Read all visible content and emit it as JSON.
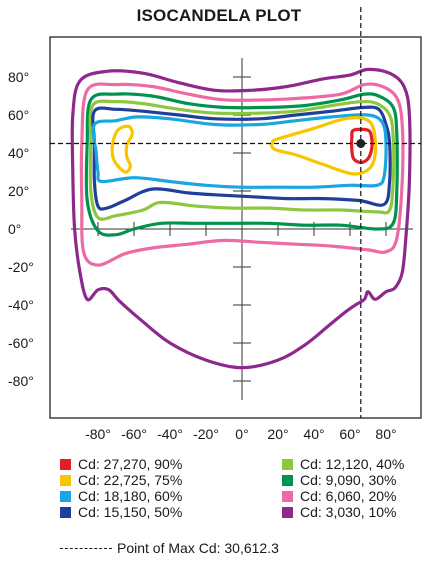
{
  "chart_data": {
    "type": "polar-contour",
    "title": "ISOCANDELA PLOT",
    "xlabel": "",
    "ylabel": "",
    "x_ticks": [
      "-80°",
      "-60°",
      "-40°",
      "-20°",
      "0°",
      "20°",
      "40°",
      "60°",
      "80°"
    ],
    "y_ticks": [
      "80°",
      "60°",
      "40°",
      "20°",
      "0°",
      "-20°",
      "-40°",
      "-60°",
      "-80°"
    ],
    "xlim": [
      -100,
      100
    ],
    "ylim": [
      -100,
      100
    ],
    "grid": "center-cross",
    "max_point": {
      "x": 66,
      "y": 45
    },
    "contours": [
      {
        "level": "Cd: 27,270, 90%",
        "color": "#e41e26",
        "paths": [
          [
            [
              62,
              52
            ],
            [
              70,
              52
            ],
            [
              72,
              48
            ],
            [
              72,
              42
            ],
            [
              70,
              37
            ],
            [
              66,
              35
            ],
            [
              62,
              37
            ],
            [
              61,
              42
            ],
            [
              61,
              48
            ]
          ]
        ]
      },
      {
        "level": "Cd: 22,725, 75%",
        "color": "#f7c600",
        "paths": [
          [
            [
              -69,
              52
            ],
            [
              -63,
              54
            ],
            [
              -61,
              50
            ],
            [
              -64,
              44
            ],
            [
              -64,
              38
            ],
            [
              -62,
              33
            ],
            [
              -65,
              30
            ],
            [
              -71,
              36
            ],
            [
              -72,
              44
            ]
          ],
          [
            [
              22,
              48
            ],
            [
              40,
              53
            ],
            [
              57,
              58
            ],
            [
              68,
              58
            ],
            [
              73,
              53
            ],
            [
              74,
              40
            ],
            [
              71,
              32
            ],
            [
              62,
              29
            ],
            [
              45,
              34
            ],
            [
              30,
              39
            ],
            [
              18,
              42
            ],
            [
              17,
              46
            ]
          ]
        ]
      },
      {
        "level": "Cd: 18,180, 60%",
        "color": "#1aa7e1",
        "paths": [
          [
            [
              -82,
              55
            ],
            [
              -70,
              57
            ],
            [
              -58,
              59
            ],
            [
              -40,
              58
            ],
            [
              -15,
              55
            ],
            [
              10,
              55
            ],
            [
              30,
              57
            ],
            [
              50,
              59
            ],
            [
              70,
              60
            ],
            [
              78,
              56
            ],
            [
              80,
              45
            ],
            [
              79,
              28
            ],
            [
              75,
              23
            ],
            [
              60,
              23
            ],
            [
              40,
              22
            ],
            [
              20,
              22
            ],
            [
              0,
              22
            ],
            [
              -20,
              23
            ],
            [
              -40,
              25
            ],
            [
              -60,
              27
            ],
            [
              -78,
              25
            ],
            [
              -80,
              30
            ],
            [
              -81,
              40
            ]
          ]
        ]
      },
      {
        "level": "Cd: 15,150, 50%",
        "color": "#1f3f98",
        "paths": [
          [
            [
              -82,
              62
            ],
            [
              -70,
              63
            ],
            [
              -55,
              62
            ],
            [
              -35,
              60
            ],
            [
              -15,
              58
            ],
            [
              10,
              58
            ],
            [
              30,
              60
            ],
            [
              50,
              62
            ],
            [
              68,
              64
            ],
            [
              76,
              63
            ],
            [
              80,
              55
            ],
            [
              82,
              45
            ],
            [
              82,
              25
            ],
            [
              79,
              13
            ],
            [
              65,
              15
            ],
            [
              45,
              16
            ],
            [
              25,
              16
            ],
            [
              5,
              17
            ],
            [
              -15,
              18
            ],
            [
              -30,
              19
            ],
            [
              -50,
              21
            ],
            [
              -65,
              15
            ],
            [
              -75,
              11
            ],
            [
              -80,
              12
            ],
            [
              -82,
              25
            ],
            [
              -82,
              45
            ]
          ]
        ]
      },
      {
        "level": "Cd: 12,120, 40%",
        "color": "#8dc63f",
        "paths": [
          [
            [
              -83,
              65
            ],
            [
              -70,
              67
            ],
            [
              -55,
              66
            ],
            [
              -35,
              63
            ],
            [
              -15,
              61
            ],
            [
              10,
              61
            ],
            [
              30,
              62
            ],
            [
              50,
              65
            ],
            [
              66,
              67
            ],
            [
              75,
              66
            ],
            [
              82,
              60
            ],
            [
              84,
              48
            ],
            [
              84,
              25
            ],
            [
              82,
              10
            ],
            [
              75,
              9
            ],
            [
              55,
              10
            ],
            [
              35,
              10
            ],
            [
              15,
              11
            ],
            [
              -5,
              11
            ],
            [
              -25,
              12
            ],
            [
              -45,
              14
            ],
            [
              -55,
              10
            ],
            [
              -70,
              7
            ],
            [
              -80,
              6
            ],
            [
              -84,
              20
            ],
            [
              -84,
              45
            ]
          ]
        ]
      },
      {
        "level": "Cd: 9,090, 30%",
        "color": "#00934d",
        "paths": [
          [
            [
              -84,
              68
            ],
            [
              -70,
              71
            ],
            [
              -50,
              70
            ],
            [
              -30,
              66
            ],
            [
              -10,
              64
            ],
            [
              15,
              64
            ],
            [
              35,
              65
            ],
            [
              55,
              68
            ],
            [
              68,
              71
            ],
            [
              76,
              70
            ],
            [
              84,
              64
            ],
            [
              86,
              50
            ],
            [
              86,
              20
            ],
            [
              84,
              3
            ],
            [
              75,
              0
            ],
            [
              55,
              2
            ],
            [
              35,
              2
            ],
            [
              15,
              3
            ],
            [
              -5,
              3
            ],
            [
              -25,
              3
            ],
            [
              -45,
              3
            ],
            [
              -60,
              0
            ],
            [
              -70,
              -3
            ],
            [
              -80,
              -1
            ],
            [
              -86,
              15
            ],
            [
              -86,
              45
            ]
          ]
        ]
      },
      {
        "level": "Cd: 6,060, 20%",
        "color": "#ee6aa3",
        "paths": [
          [
            [
              -86,
              73
            ],
            [
              -70,
              76
            ],
            [
              -50,
              75
            ],
            [
              -30,
              71
            ],
            [
              -10,
              68
            ],
            [
              15,
              68
            ],
            [
              35,
              69
            ],
            [
              55,
              71
            ],
            [
              68,
              76
            ],
            [
              78,
              75
            ],
            [
              86,
              69
            ],
            [
              89,
              55
            ],
            [
              89,
              25
            ],
            [
              86,
              -5
            ],
            [
              80,
              -12
            ],
            [
              70,
              -11
            ],
            [
              50,
              -9
            ],
            [
              30,
              -8
            ],
            [
              10,
              -7
            ],
            [
              -10,
              -6
            ],
            [
              -30,
              -8
            ],
            [
              -50,
              -10
            ],
            [
              -65,
              -13
            ],
            [
              -80,
              -19
            ],
            [
              -88,
              -12
            ],
            [
              -89,
              15
            ],
            [
              -89,
              45
            ]
          ]
        ]
      },
      {
        "level": "Cd: 3,030, 10%",
        "color": "#8e278e",
        "paths": [
          [
            [
              -90,
              78
            ],
            [
              -75,
              83
            ],
            [
              -55,
              82
            ],
            [
              -35,
              77
            ],
            [
              -15,
              73
            ],
            [
              5,
              73
            ],
            [
              25,
              75
            ],
            [
              45,
              79
            ],
            [
              60,
              81
            ],
            [
              70,
              84
            ],
            [
              82,
              82
            ],
            [
              90,
              75
            ],
            [
              93,
              60
            ],
            [
              93,
              25
            ],
            [
              91,
              -5
            ],
            [
              89,
              -23
            ],
            [
              85,
              -31
            ],
            [
              80,
              -33
            ],
            [
              74,
              -37
            ],
            [
              70,
              -33
            ],
            [
              68,
              -37
            ],
            [
              63,
              -40
            ],
            [
              57,
              -44
            ],
            [
              48,
              -51
            ],
            [
              35,
              -61
            ],
            [
              20,
              -69
            ],
            [
              0,
              -73
            ],
            [
              -20,
              -69
            ],
            [
              -40,
              -60
            ],
            [
              -56,
              -48
            ],
            [
              -68,
              -38
            ],
            [
              -74,
              -32
            ],
            [
              -80,
              -32
            ],
            [
              -86,
              -37
            ],
            [
              -90,
              -23
            ],
            [
              -93,
              0
            ],
            [
              -94,
              30
            ],
            [
              -94,
              60
            ]
          ]
        ]
      }
    ],
    "legend": [
      {
        "label": "Cd: 27,270, 90%",
        "color": "#e41e26"
      },
      {
        "label": "Cd: 22,725, 75%",
        "color": "#f7c600"
      },
      {
        "label": "Cd: 18,180, 60%",
        "color": "#1aa7e1"
      },
      {
        "label": "Cd: 15,150, 50%",
        "color": "#1f3f98"
      },
      {
        "label": "Cd: 12,120, 40%",
        "color": "#8dc63f"
      },
      {
        "label": "Cd: 9,090, 30%",
        "color": "#00934d"
      },
      {
        "label": "Cd: 6,060, 20%",
        "color": "#ee6aa3"
      },
      {
        "label": "Cd: 3,030, 10%",
        "color": "#8e278e"
      }
    ],
    "max_note": "Point of Max Cd: 30,612.3",
    "legend_placement": "bottom"
  }
}
